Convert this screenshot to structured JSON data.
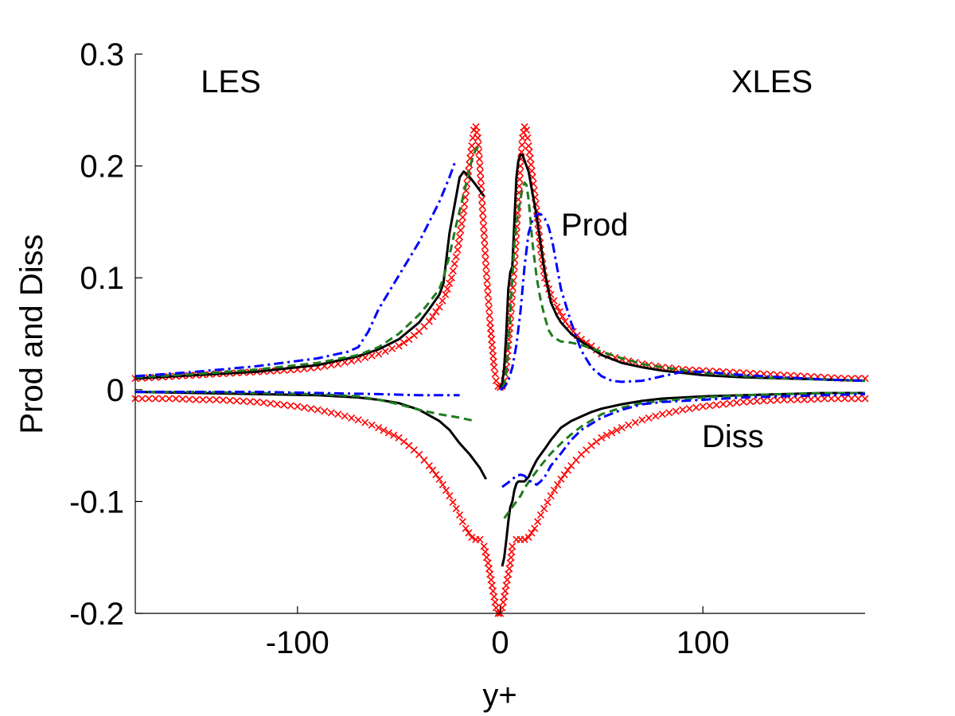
{
  "chart_data": {
    "type": "line",
    "title": "",
    "xlabel": "y+",
    "ylabel": "Prod and Diss",
    "xlim": [
      -180,
      180
    ],
    "ylim": [
      -0.2,
      0.3
    ],
    "xticks": [
      -100,
      0,
      100
    ],
    "xtick_labels": [
      "-100",
      "0",
      "100"
    ],
    "yticks": [
      -0.2,
      -0.1,
      0,
      0.1,
      0.2,
      0.3
    ],
    "ytick_labels": [
      "-0.2",
      "-0.1",
      "0",
      "0.1",
      "0.2",
      "0.3"
    ],
    "grid": false,
    "legend": null,
    "annotations": [
      {
        "text": "LES",
        "x": -150,
        "y": 0.275
      },
      {
        "text": "XLES",
        "x": 135,
        "y": 0.275
      },
      {
        "text": "Prod",
        "x": 44,
        "y": 0.147
      },
      {
        "text": "Diss",
        "x": 128,
        "y": -0.043
      }
    ],
    "series": [
      {
        "name": "reference-dns-prod",
        "style": "markers",
        "marker": "x",
        "color": "#ff0000",
        "x": [
          -180,
          -170,
          -160,
          -150,
          -140,
          -130,
          -120,
          -110,
          -100,
          -90,
          -80,
          -70,
          -60,
          -50,
          -45,
          -40,
          -35,
          -30,
          -27,
          -24,
          -21,
          -18,
          -16,
          -14,
          -13,
          -12,
          -11,
          -10,
          -9,
          -8,
          -7,
          -6,
          -5,
          -4,
          -3,
          -2,
          -1,
          0,
          1,
          2,
          3,
          4,
          5,
          6,
          7,
          8,
          9,
          10,
          11,
          12,
          13,
          14,
          16,
          18,
          20,
          22,
          25,
          28,
          32,
          36,
          40,
          45,
          50,
          60,
          70,
          80,
          90,
          100,
          110,
          120,
          130,
          140,
          150,
          160,
          170,
          180
        ],
        "y": [
          0.01,
          0.011,
          0.012,
          0.013,
          0.014,
          0.015,
          0.016,
          0.017,
          0.018,
          0.02,
          0.023,
          0.027,
          0.032,
          0.039,
          0.045,
          0.052,
          0.061,
          0.074,
          0.085,
          0.1,
          0.125,
          0.16,
          0.19,
          0.218,
          0.232,
          0.235,
          0.225,
          0.2,
          0.17,
          0.14,
          0.11,
          0.085,
          0.06,
          0.04,
          0.02,
          0.008,
          0.003,
          0.002,
          0.003,
          0.008,
          0.02,
          0.04,
          0.06,
          0.085,
          0.11,
          0.14,
          0.17,
          0.2,
          0.225,
          0.235,
          0.232,
          0.218,
          0.19,
          0.16,
          0.125,
          0.1,
          0.085,
          0.074,
          0.061,
          0.052,
          0.045,
          0.039,
          0.032,
          0.027,
          0.023,
          0.02,
          0.018,
          0.017,
          0.016,
          0.015,
          0.014,
          0.013,
          0.012,
          0.011,
          0.01,
          0.01
        ]
      },
      {
        "name": "reference-dns-diss",
        "style": "markers",
        "marker": "x",
        "color": "#ff0000",
        "x": [
          -180,
          -170,
          -160,
          -150,
          -140,
          -130,
          -120,
          -110,
          -100,
          -90,
          -80,
          -70,
          -60,
          -50,
          -45,
          -40,
          -35,
          -30,
          -25,
          -20,
          -17,
          -14,
          -12,
          -10,
          -8,
          -6,
          -5,
          -4,
          -3,
          -2,
          -1,
          0,
          1,
          2,
          3,
          4,
          5,
          6,
          8,
          10,
          12,
          14,
          17,
          20,
          25,
          30,
          35,
          40,
          45,
          50,
          60,
          70,
          80,
          90,
          100,
          110,
          120,
          130,
          140,
          150,
          160,
          170,
          180
        ],
        "y": [
          -0.008,
          -0.008,
          -0.008,
          -0.009,
          -0.009,
          -0.01,
          -0.011,
          -0.013,
          -0.015,
          -0.018,
          -0.022,
          -0.027,
          -0.034,
          -0.043,
          -0.05,
          -0.058,
          -0.068,
          -0.08,
          -0.095,
          -0.112,
          -0.124,
          -0.132,
          -0.134,
          -0.134,
          -0.14,
          -0.155,
          -0.165,
          -0.175,
          -0.185,
          -0.195,
          -0.2,
          -0.2,
          -0.195,
          -0.185,
          -0.175,
          -0.165,
          -0.155,
          -0.14,
          -0.134,
          -0.134,
          -0.134,
          -0.132,
          -0.124,
          -0.112,
          -0.095,
          -0.08,
          -0.068,
          -0.058,
          -0.05,
          -0.043,
          -0.034,
          -0.027,
          -0.022,
          -0.018,
          -0.015,
          -0.013,
          -0.011,
          -0.01,
          -0.009,
          -0.009,
          -0.008,
          -0.008,
          -0.008
        ]
      },
      {
        "name": "les-black-prod",
        "style": "solid",
        "color": "#000000",
        "x": [
          -180,
          -150,
          -120,
          -90,
          -70,
          -60,
          -50,
          -40,
          -35,
          -30,
          -28,
          -25,
          -20,
          -18,
          -15,
          -12,
          -10,
          -8
        ],
        "y": [
          0.01,
          0.013,
          0.016,
          0.022,
          0.03,
          0.036,
          0.045,
          0.06,
          0.072,
          0.085,
          0.095,
          0.14,
          0.19,
          0.195,
          0.19,
          0.183,
          0.178,
          0.173
        ]
      },
      {
        "name": "les-black-diss",
        "style": "solid",
        "color": "#000000",
        "x": [
          -180,
          -150,
          -120,
          -90,
          -70,
          -60,
          -50,
          -40,
          -30,
          -25,
          -20,
          -15,
          -10,
          -7
        ],
        "y": [
          -0.002,
          -0.003,
          -0.004,
          -0.005,
          -0.007,
          -0.009,
          -0.012,
          -0.018,
          -0.028,
          -0.036,
          -0.048,
          -0.058,
          -0.07,
          -0.08
        ]
      },
      {
        "name": "les-green-prod",
        "style": "dashed",
        "color": "#1e7d1e",
        "x": [
          -180,
          -150,
          -120,
          -90,
          -70,
          -60,
          -50,
          -40,
          -35,
          -30,
          -28,
          -25,
          -22,
          -20,
          -18,
          -16,
          -14,
          -12,
          -10
        ],
        "y": [
          0.011,
          0.014,
          0.018,
          0.024,
          0.031,
          0.038,
          0.05,
          0.067,
          0.078,
          0.09,
          0.1,
          0.12,
          0.145,
          0.16,
          0.175,
          0.19,
          0.205,
          0.215,
          0.218
        ]
      },
      {
        "name": "les-green-diss",
        "style": "dashed",
        "color": "#1e7d1e",
        "x": [
          -180,
          -150,
          -120,
          -90,
          -70,
          -60,
          -50,
          -40,
          -30,
          -20,
          -15,
          -12
        ],
        "y": [
          -0.002,
          -0.002,
          -0.003,
          -0.004,
          -0.006,
          -0.009,
          -0.013,
          -0.018,
          -0.022,
          -0.025,
          -0.027,
          -0.028
        ]
      },
      {
        "name": "les-blue-prod",
        "style": "dashdot",
        "color": "#0000ff",
        "x": [
          -180,
          -150,
          -120,
          -90,
          -75,
          -70,
          -65,
          -60,
          -50,
          -40,
          -30,
          -25,
          -22
        ],
        "y": [
          0.012,
          0.016,
          0.021,
          0.028,
          0.034,
          0.038,
          0.052,
          0.072,
          0.102,
          0.132,
          0.168,
          0.19,
          0.205
        ]
      },
      {
        "name": "les-blue-diss",
        "style": "dashdot",
        "color": "#0000ff",
        "x": [
          -180,
          -150,
          -120,
          -90,
          -60,
          -40,
          -20
        ],
        "y": [
          -0.002,
          -0.002,
          -0.002,
          -0.003,
          -0.004,
          -0.005,
          -0.005
        ]
      },
      {
        "name": "xles-black-prod",
        "style": "solid",
        "color": "#000000",
        "x": [
          0,
          1,
          2,
          3,
          4,
          5,
          6,
          7,
          8,
          9,
          10,
          11,
          12,
          13,
          14,
          16,
          18,
          20,
          22,
          25,
          28,
          30,
          35,
          40,
          45,
          50,
          60,
          70,
          80,
          90,
          100,
          120,
          140,
          160,
          180
        ],
        "y": [
          0.002,
          0.005,
          0.02,
          0.05,
          0.09,
          0.105,
          0.11,
          0.15,
          0.19,
          0.205,
          0.21,
          0.21,
          0.205,
          0.2,
          0.195,
          0.175,
          0.155,
          0.13,
          0.105,
          0.078,
          0.066,
          0.06,
          0.05,
          0.043,
          0.037,
          0.031,
          0.024,
          0.02,
          0.017,
          0.015,
          0.013,
          0.011,
          0.01,
          0.009,
          0.008
        ]
      },
      {
        "name": "xles-black-diss",
        "style": "solid",
        "color": "#000000",
        "x": [
          1,
          2,
          3,
          4,
          5,
          6,
          7,
          8,
          9,
          10,
          11,
          12,
          14,
          16,
          18,
          20,
          22,
          25,
          30,
          35,
          40,
          45,
          50,
          60,
          70,
          80,
          90,
          100,
          120,
          140,
          160,
          180
        ],
        "y": [
          -0.158,
          -0.15,
          -0.135,
          -0.118,
          -0.105,
          -0.1,
          -0.09,
          -0.084,
          -0.082,
          -0.082,
          -0.082,
          -0.082,
          -0.078,
          -0.07,
          -0.063,
          -0.058,
          -0.053,
          -0.045,
          -0.034,
          -0.028,
          -0.024,
          -0.02,
          -0.017,
          -0.013,
          -0.01,
          -0.008,
          -0.007,
          -0.006,
          -0.005,
          -0.004,
          -0.003,
          -0.003
        ]
      },
      {
        "name": "xles-green-prod",
        "style": "dashed",
        "color": "#1e7d1e",
        "x": [
          1,
          2,
          3,
          4,
          5,
          6,
          7,
          8,
          9,
          10,
          11,
          12,
          13,
          14,
          16,
          18,
          20,
          22,
          24,
          26,
          30,
          35,
          40,
          45,
          50,
          60,
          70,
          80,
          100,
          120,
          140,
          160,
          180
        ],
        "y": [
          0.002,
          0.005,
          0.015,
          0.04,
          0.07,
          0.1,
          0.13,
          0.15,
          0.16,
          0.17,
          0.18,
          0.185,
          0.183,
          0.17,
          0.13,
          0.1,
          0.08,
          0.065,
          0.053,
          0.047,
          0.043,
          0.042,
          0.04,
          0.037,
          0.034,
          0.028,
          0.023,
          0.02,
          0.015,
          0.012,
          0.01,
          0.009,
          0.008
        ]
      },
      {
        "name": "xles-green-diss",
        "style": "dashed",
        "color": "#1e7d1e",
        "x": [
          2,
          4,
          6,
          8,
          10,
          12,
          15,
          20,
          25,
          30,
          35,
          40,
          50,
          60,
          70,
          80,
          100,
          120,
          140,
          160,
          180
        ],
        "y": [
          -0.115,
          -0.11,
          -0.105,
          -0.1,
          -0.095,
          -0.088,
          -0.08,
          -0.068,
          -0.057,
          -0.048,
          -0.04,
          -0.033,
          -0.022,
          -0.016,
          -0.012,
          -0.01,
          -0.007,
          -0.005,
          -0.004,
          -0.003,
          -0.003
        ]
      },
      {
        "name": "xles-blue-prod",
        "style": "dashdot",
        "color": "#0000ff",
        "x": [
          0,
          2,
          4,
          6,
          8,
          10,
          12,
          14,
          16,
          18,
          20,
          22,
          24,
          26,
          28,
          30,
          35,
          40,
          45,
          50,
          55,
          60,
          70,
          80,
          90,
          100,
          120,
          140,
          160,
          180
        ],
        "y": [
          0.0,
          0.002,
          0.008,
          0.02,
          0.04,
          0.07,
          0.11,
          0.14,
          0.152,
          0.157,
          0.157,
          0.153,
          0.145,
          0.13,
          0.11,
          0.09,
          0.06,
          0.035,
          0.02,
          0.012,
          0.008,
          0.007,
          0.008,
          0.012,
          0.016,
          0.016,
          0.013,
          0.011,
          0.009,
          0.008
        ]
      },
      {
        "name": "xles-blue-diss",
        "style": "dashdot",
        "color": "#0000ff",
        "x": [
          1,
          4,
          6,
          8,
          10,
          12,
          14,
          16,
          18,
          20,
          22,
          25,
          30,
          35,
          40,
          50,
          60,
          70,
          80,
          100,
          120,
          140,
          160,
          180
        ],
        "y": [
          -0.087,
          -0.083,
          -0.08,
          -0.077,
          -0.076,
          -0.077,
          -0.081,
          -0.083,
          -0.085,
          -0.082,
          -0.078,
          -0.068,
          -0.057,
          -0.045,
          -0.036,
          -0.025,
          -0.018,
          -0.013,
          -0.011,
          -0.009,
          -0.007,
          -0.006,
          -0.005,
          -0.004
        ]
      }
    ]
  }
}
